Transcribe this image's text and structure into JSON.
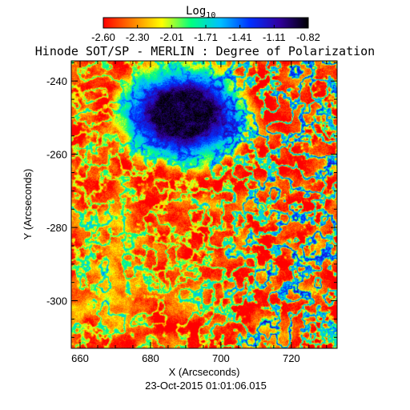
{
  "chart_data": {
    "type": "heatmap",
    "title": "Hinode SOT/SP - MERLIN : Degree of Polarization",
    "xlabel": "X (Arcseconds)",
    "ylabel": "Y (Arcseconds)",
    "date_label": "23-Oct-2015 01:01:06.015",
    "colorbar": {
      "label_base": "Log",
      "label_sub": "10",
      "ticks": [
        "-2.60",
        "-2.30",
        "-2.01",
        "-1.71",
        "-1.41",
        "-1.11",
        "-0.82"
      ],
      "range": [
        -2.6,
        -0.82
      ],
      "colors": [
        "#ff0000",
        "#ff8000",
        "#ffff00",
        "#00ff80",
        "#00c0ff",
        "#0030ff",
        "#3000a0",
        "#000000"
      ]
    },
    "xlim": [
      657.5,
      733.0
    ],
    "ylim": [
      -313.0,
      -234.5
    ],
    "xticks": [
      660,
      680,
      700,
      720
    ],
    "yticks": [
      -240,
      -260,
      -280,
      -300
    ],
    "x_tick_labels": [
      "660",
      "680",
      "700",
      "720"
    ],
    "y_tick_labels": [
      "-240",
      "-260",
      "-280",
      "-300"
    ],
    "features": {
      "umbra_center": [
        689,
        -249
      ],
      "umbra_value": -0.9,
      "background_value": -2.5
    }
  }
}
